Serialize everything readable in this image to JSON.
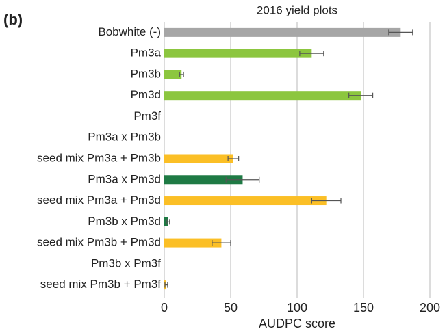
{
  "chart_data": {
    "type": "bar",
    "orientation": "horizontal",
    "panel_label": "(b)",
    "title": "2016 yield plots",
    "x_label": "AUDPC score",
    "categories": [
      "Bobwhite (-)",
      "Pm3a",
      "Pm3b",
      "Pm3d",
      "Pm3f",
      "Pm3a x Pm3b",
      "seed mix Pm3a + Pm3b",
      "Pm3a x Pm3d",
      "seed mix Pm3a + Pm3d",
      "Pm3b x Pm3d",
      "seed mix Pm3b + Pm3d",
      "Pm3b x Pm3f",
      "seed mix Pm3b + Pm3f"
    ],
    "values": [
      178,
      111,
      13,
      148,
      null,
      null,
      52,
      59,
      122,
      3,
      43,
      null,
      1.5
    ],
    "errors": [
      9,
      9,
      1.5,
      9,
      null,
      null,
      4,
      12.5,
      11,
      1,
      7,
      null,
      1
    ],
    "colors": [
      "#a6a6a6",
      "#8cc63f",
      "#8cc63f",
      "#8cc63f",
      "#8cc63f",
      "#1e7a44",
      "#fbbf26",
      "#1e7a44",
      "#fbbf26",
      "#1e7a44",
      "#fbbf26",
      "#1e7a44",
      "#fbbf26"
    ],
    "xlim": [
      0,
      200
    ],
    "xticks": [
      0,
      50,
      100,
      150,
      200
    ],
    "grid": true
  }
}
